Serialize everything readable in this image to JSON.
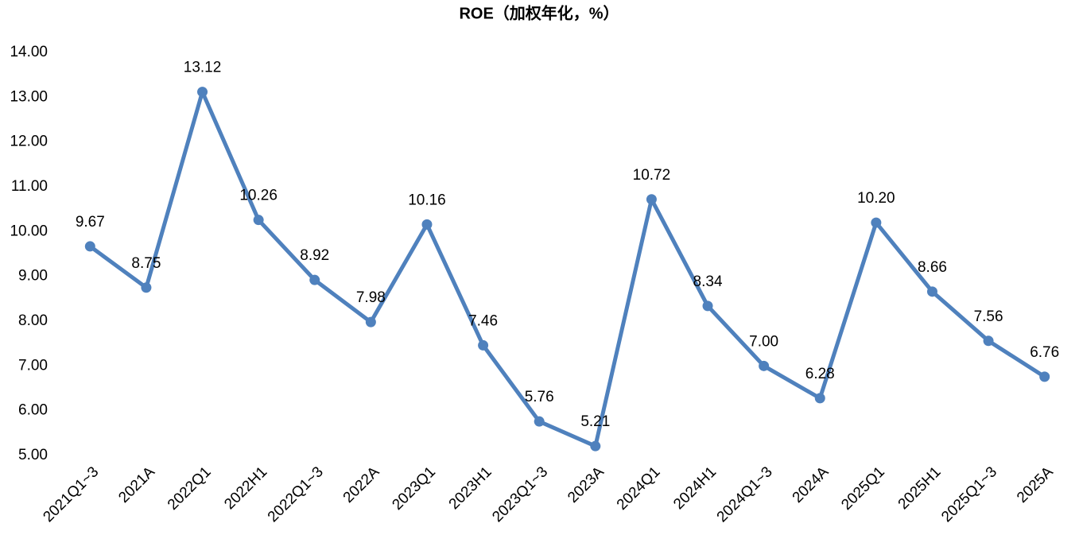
{
  "chart_data": {
    "type": "line",
    "title": "ROE（加权年化，%）",
    "categories": [
      "2021Q1~3",
      "2021A",
      "2022Q1",
      "2022H1",
      "2022Q1~3",
      "2022A",
      "2023Q1",
      "2023H1",
      "2023Q1~3",
      "2023A",
      "2024Q1",
      "2024H1",
      "2024Q1~3",
      "2024A",
      "2025Q1",
      "2025H1",
      "2025Q1~3",
      "2025A"
    ],
    "series": [
      {
        "name": "ROE",
        "color": "#4f81bd",
        "values": [
          9.67,
          8.75,
          13.12,
          10.26,
          8.92,
          7.98,
          10.16,
          7.46,
          5.76,
          5.21,
          10.72,
          8.34,
          7.0,
          6.28,
          10.2,
          8.66,
          7.56,
          6.76
        ],
        "value_labels": [
          "9.67",
          "8.75",
          "13.12",
          "10.26",
          "8.92",
          "7.98",
          "10.16",
          "7.46",
          "5.76",
          "5.21",
          "10.72",
          "8.34",
          "7.00",
          "6.28",
          "10.20",
          "8.66",
          "7.56",
          "6.76"
        ]
      }
    ],
    "ylim": [
      5,
      14
    ],
    "yticks": [
      {
        "value": 5,
        "label": "5.00"
      },
      {
        "value": 6,
        "label": "6.00"
      },
      {
        "value": 7,
        "label": "7.00"
      },
      {
        "value": 8,
        "label": "8.00"
      },
      {
        "value": 9,
        "label": "9.00"
      },
      {
        "value": 10,
        "label": "10.00"
      },
      {
        "value": 11,
        "label": "11.00"
      },
      {
        "value": 12,
        "label": "12.00"
      },
      {
        "value": 13,
        "label": "13.00"
      },
      {
        "value": 14,
        "label": "14.00"
      }
    ],
    "grid": false
  }
}
